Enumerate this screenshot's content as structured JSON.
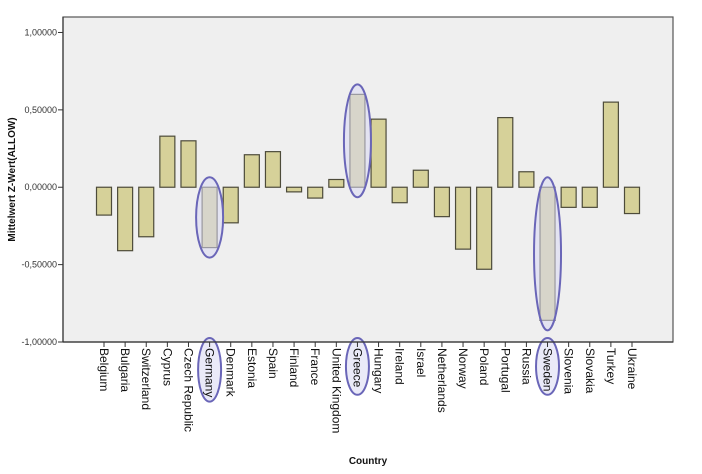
{
  "chart_data": {
    "type": "bar",
    "title": "",
    "xlabel": "Country",
    "ylabel": "Mittelwert Z-Wert(ALLOW)",
    "ylim": [
      -1.0,
      1.1
    ],
    "yticks": [
      1.0,
      0.5,
      0.0,
      -0.5,
      -1.0
    ],
    "ytick_labels": [
      "1,00000",
      "0,50000",
      "0,00000",
      "-0,50000",
      "-1,00000"
    ],
    "grid": false,
    "legend": "none",
    "categories": [
      "Belgium",
      "Bulgaria",
      "Switzerland",
      "Cyprus",
      "Czech Republic",
      "Germany",
      "Denmark",
      "Estonia",
      "Spain",
      "Finland",
      "France",
      "United Kingdom",
      "Greece",
      "Hungary",
      "Ireland",
      "Israel",
      "Netherlands",
      "Norway",
      "Poland",
      "Portugal",
      "Russia",
      "Sweden",
      "Slovenia",
      "Slovakia",
      "Turkey",
      "Ukraine"
    ],
    "values": [
      -0.18,
      -0.41,
      -0.32,
      0.33,
      0.3,
      -0.39,
      -0.23,
      0.21,
      0.23,
      -0.03,
      -0.07,
      0.05,
      0.6,
      0.44,
      -0.1,
      0.11,
      -0.19,
      -0.4,
      -0.53,
      0.45,
      0.1,
      -0.86,
      -0.13,
      -0.13,
      0.55,
      -0.17
    ],
    "annotations": [
      {
        "type": "ellipse-highlight",
        "category": "Germany"
      },
      {
        "type": "ellipse-highlight",
        "category": "Greece"
      },
      {
        "type": "ellipse-highlight",
        "category": "Sweden"
      }
    ]
  },
  "colors": {
    "bar_fill": "#d6d199",
    "bar_stroke": "#4d4b3a",
    "plot_background": "#efefef",
    "highlight_stroke": "#6a66b8",
    "highlight_fill": "#d9d8f2"
  }
}
